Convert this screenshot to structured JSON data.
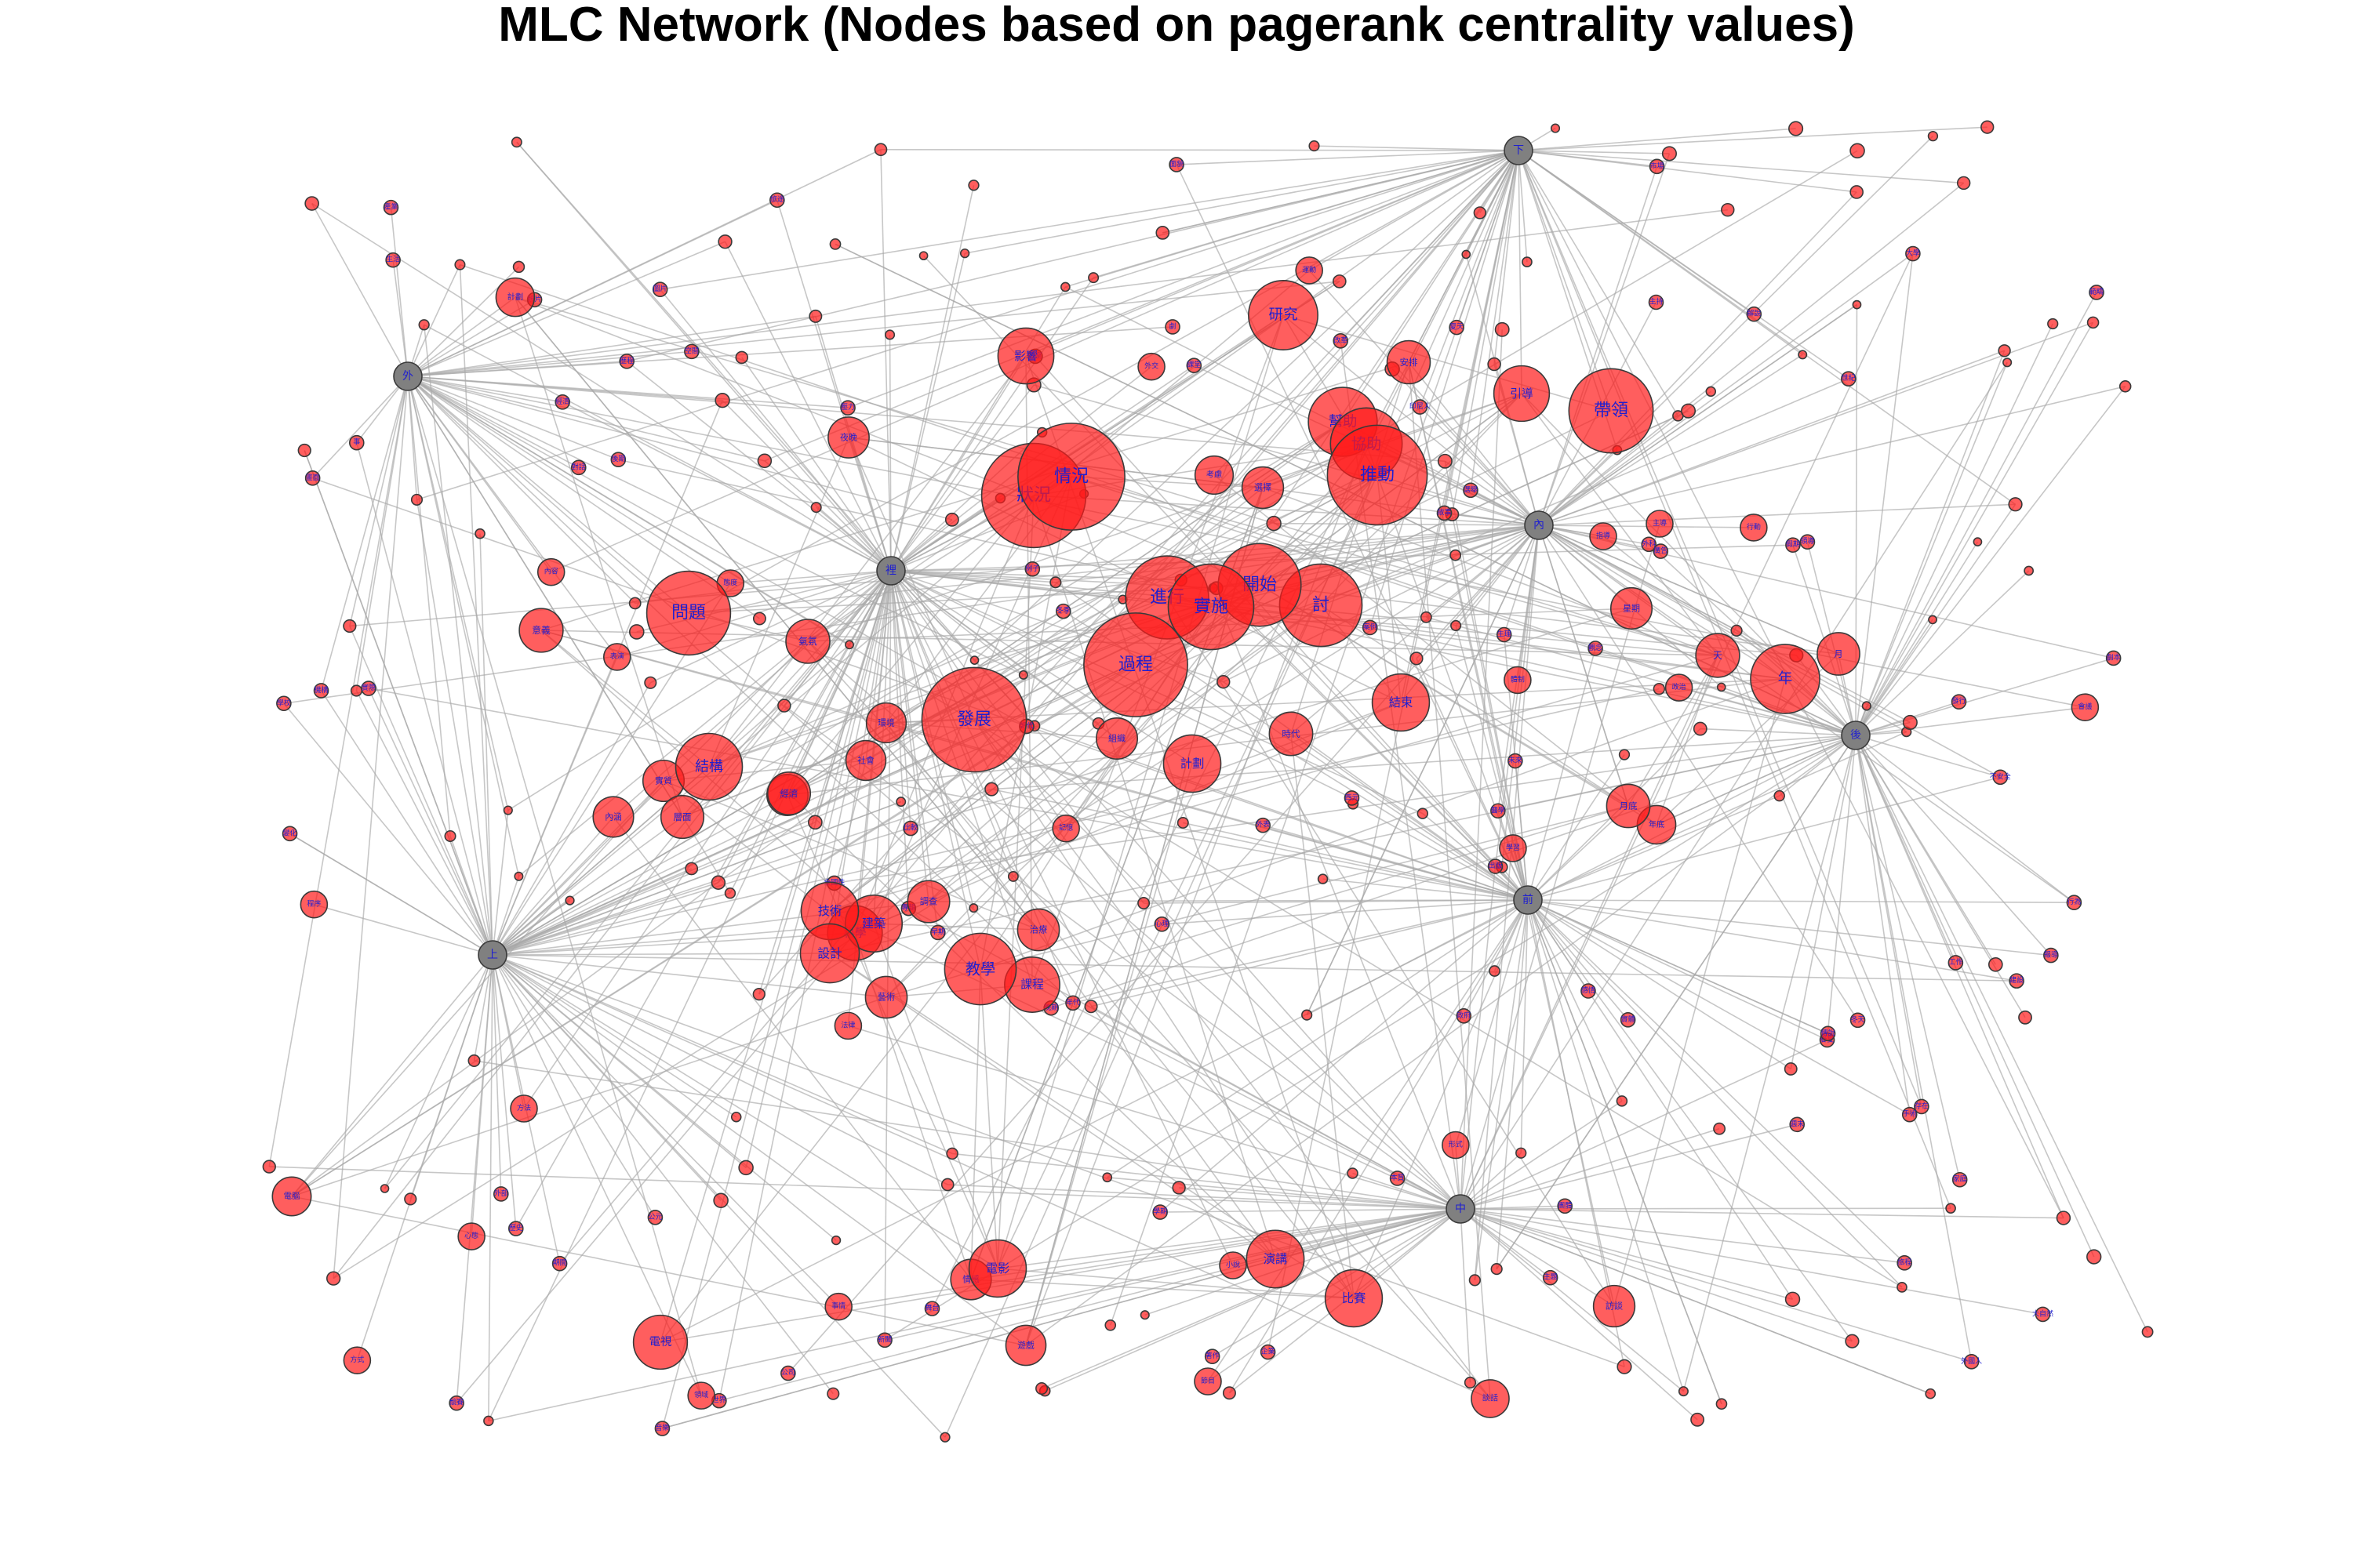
{
  "title": "MLC Network (Nodes based on pagerank centrality values)",
  "colors": {
    "node_fill": "#ff1a1a",
    "hub_fill": "#808080",
    "edge": "#a9a9a9",
    "label": "#1f1fd0"
  },
  "hubs": [
    {
      "id": "上",
      "label": "上"
    },
    {
      "id": "下",
      "label": "下"
    },
    {
      "id": "中",
      "label": "中"
    },
    {
      "id": "外",
      "label": "外"
    },
    {
      "id": "後",
      "label": "後"
    },
    {
      "id": "前",
      "label": "前"
    },
    {
      "id": "內",
      "label": "內"
    },
    {
      "id": "裡",
      "label": "裡"
    }
  ],
  "nodes": [
    {
      "label": "情況",
      "size": 9
    },
    {
      "label": "推動",
      "size": 8
    },
    {
      "label": "狀況",
      "size": 7
    },
    {
      "label": "過程",
      "size": 7
    },
    {
      "label": "發展",
      "size": 7
    },
    {
      "label": "帶領",
      "size": 6
    },
    {
      "label": "進行",
      "size": 6
    },
    {
      "label": "問題",
      "size": 6
    },
    {
      "label": "實施",
      "size": 6
    },
    {
      "label": "開始",
      "size": 6
    },
    {
      "label": "討",
      "size": 6
    },
    {
      "label": "幫助",
      "size": 5
    },
    {
      "label": "協助",
      "size": 5
    },
    {
      "label": "結構",
      "size": 5
    },
    {
      "label": "年",
      "size": 5
    },
    {
      "label": "計劃",
      "size": 4
    },
    {
      "label": "研究",
      "size": 5
    },
    {
      "label": "教學",
      "size": 5
    },
    {
      "label": "課程",
      "size": 4
    },
    {
      "label": "影響",
      "size": 4
    },
    {
      "label": "引導",
      "size": 4
    },
    {
      "label": "電視",
      "size": 4
    },
    {
      "label": "比賽",
      "size": 4
    },
    {
      "label": "演講",
      "size": 4
    },
    {
      "label": "電影",
      "size": 4
    },
    {
      "label": "結束",
      "size": 4
    },
    {
      "label": "建築",
      "size": 4
    },
    {
      "label": "設計",
      "size": 4
    },
    {
      "label": "技術",
      "size": 4
    },
    {
      "label": "科學",
      "size": 4
    },
    {
      "label": "組織",
      "size": 3
    },
    {
      "label": "社會",
      "size": 3
    },
    {
      "label": "環境",
      "size": 3
    },
    {
      "label": "計劃",
      "size": 3
    },
    {
      "label": "文化",
      "size": 3
    },
    {
      "label": "意義",
      "size": 3
    },
    {
      "label": "氣氛",
      "size": 3
    },
    {
      "label": "夜晚",
      "size": 3
    },
    {
      "label": "考慮",
      "size": 3
    },
    {
      "label": "選擇",
      "size": 3
    },
    {
      "label": "經濟",
      "size": 3
    },
    {
      "label": "內涵",
      "size": 3
    },
    {
      "label": "層面",
      "size": 3
    },
    {
      "label": "實質",
      "size": 3
    },
    {
      "label": "藝術",
      "size": 3
    },
    {
      "label": "治療",
      "size": 3
    },
    {
      "label": "方法",
      "size": 2
    },
    {
      "label": "調查",
      "size": 3
    },
    {
      "label": "電腦",
      "size": 3
    },
    {
      "label": "情感",
      "size": 3
    },
    {
      "label": "時代",
      "size": 3
    },
    {
      "label": "安排",
      "size": 3
    },
    {
      "label": "星期",
      "size": 3
    },
    {
      "label": "天",
      "size": 3
    },
    {
      "label": "月",
      "size": 3
    },
    {
      "label": "月底",
      "size": 3
    },
    {
      "label": "年底",
      "size": 3
    },
    {
      "label": "訪談",
      "size": 3
    },
    {
      "label": "談話",
      "size": 3
    },
    {
      "label": "遊戲",
      "size": 3
    },
    {
      "label": "節目",
      "size": 2
    },
    {
      "label": "小說",
      "size": 2
    },
    {
      "label": "表演",
      "size": 2
    },
    {
      "label": "主導",
      "size": 2
    },
    {
      "label": "指導",
      "size": 2
    },
    {
      "label": "記憶",
      "size": 2
    },
    {
      "label": "政治",
      "size": 2
    },
    {
      "label": "法律",
      "size": 2
    },
    {
      "label": "程序",
      "size": 2
    },
    {
      "label": "學習",
      "size": 2
    },
    {
      "label": "運動",
      "size": 2
    },
    {
      "label": "事情",
      "size": 2
    },
    {
      "label": "外交",
      "size": 2
    },
    {
      "label": "心態",
      "size": 2
    },
    {
      "label": "態度",
      "size": 2
    },
    {
      "label": "領域",
      "size": 2
    },
    {
      "label": "形式",
      "size": 2
    },
    {
      "label": "方式",
      "size": 2
    },
    {
      "label": "內容",
      "size": 2
    },
    {
      "label": "會議",
      "size": 2
    },
    {
      "label": "行動",
      "size": 2
    },
    {
      "label": "體制",
      "size": 2
    },
    {
      "label": "世界",
      "size": 1
    },
    {
      "label": "生活",
      "size": 1
    },
    {
      "label": "心理",
      "size": 1
    },
    {
      "label": "壓力",
      "size": 1
    },
    {
      "label": "觀念",
      "size": 1
    },
    {
      "label": "生理",
      "size": 1
    },
    {
      "label": "實際",
      "size": 1
    },
    {
      "label": "實體",
      "size": 1
    },
    {
      "label": "歷史",
      "size": 1
    },
    {
      "label": "感情",
      "size": 1
    },
    {
      "label": "工作",
      "size": 1
    },
    {
      "label": "外表",
      "size": 1
    },
    {
      "label": "外部",
      "size": 1
    },
    {
      "label": "事",
      "size": 1
    },
    {
      "label": "公元",
      "size": 1
    },
    {
      "label": "西元",
      "size": 1
    },
    {
      "label": "出版",
      "size": 1
    },
    {
      "label": "選舉",
      "size": 1
    },
    {
      "label": "經濟",
      "size": 1
    },
    {
      "label": "著作",
      "size": 1
    },
    {
      "label": "旅程",
      "size": 1
    },
    {
      "label": "發行",
      "size": 1
    },
    {
      "label": "存在",
      "size": 1
    },
    {
      "label": "旅途",
      "size": 1
    },
    {
      "label": "劇",
      "size": 1
    },
    {
      "label": "劇本",
      "size": 1
    },
    {
      "label": "手術",
      "size": 1
    },
    {
      "label": "解說",
      "size": 1
    },
    {
      "label": "主題",
      "size": 1
    },
    {
      "label": "空間",
      "size": 1
    },
    {
      "label": "建設",
      "size": 1
    },
    {
      "label": "醫學",
      "size": 1
    },
    {
      "label": "外科",
      "size": 1
    },
    {
      "label": "改革",
      "size": 1
    },
    {
      "label": "主持",
      "size": 1
    },
    {
      "label": "領導",
      "size": 1
    },
    {
      "label": "變化",
      "size": 1
    },
    {
      "label": "歷程",
      "size": 1
    },
    {
      "label": "行為",
      "size": 1
    },
    {
      "label": "面貌",
      "size": 1
    },
    {
      "label": "本質",
      "size": 1
    },
    {
      "label": "範疇",
      "size": 1
    },
    {
      "label": "大自然",
      "size": 1
    },
    {
      "label": "外國人",
      "size": 1
    },
    {
      "label": "印尼人",
      "size": 1
    },
    {
      "label": "全國性",
      "size": 1
    },
    {
      "label": "不安全",
      "size": 1
    },
    {
      "label": "冬季",
      "size": 1
    },
    {
      "label": "冬天",
      "size": 1
    },
    {
      "label": "夏天",
      "size": 1
    },
    {
      "label": "春夏",
      "size": 1
    },
    {
      "label": "早期",
      "size": 1
    },
    {
      "label": "後期",
      "size": 1
    },
    {
      "label": "晚期",
      "size": 1
    },
    {
      "label": "未來",
      "size": 1
    },
    {
      "label": "期間",
      "size": 1
    },
    {
      "label": "年代",
      "size": 1
    },
    {
      "label": "世紀",
      "size": 1
    },
    {
      "label": "朝代",
      "size": 1
    },
    {
      "label": "學期",
      "size": 1
    },
    {
      "label": "假期",
      "size": 1
    },
    {
      "label": "週末",
      "size": 1
    },
    {
      "label": "課堂",
      "size": 1
    },
    {
      "label": "教室",
      "size": 1
    },
    {
      "label": "學校",
      "size": 1
    },
    {
      "label": "大學",
      "size": 1
    },
    {
      "label": "家庭",
      "size": 1
    },
    {
      "label": "團體",
      "size": 1
    },
    {
      "label": "政府",
      "size": 1
    },
    {
      "label": "公司",
      "size": 1
    },
    {
      "label": "市場",
      "size": 1
    },
    {
      "label": "產業",
      "size": 1
    },
    {
      "label": "企業",
      "size": 1
    },
    {
      "label": "機構",
      "size": 1
    },
    {
      "label": "例子",
      "size": 1
    },
    {
      "label": "案例",
      "size": 1
    },
    {
      "label": "比較",
      "size": 1
    },
    {
      "label": "競賽",
      "size": 1
    },
    {
      "label": "專輯",
      "size": 1
    },
    {
      "label": "對話",
      "size": 1
    },
    {
      "label": "傳說",
      "size": 1
    },
    {
      "label": "故事",
      "size": 1
    },
    {
      "label": "新聞",
      "size": 1
    },
    {
      "label": "報導",
      "size": 1
    },
    {
      "label": "廣告",
      "size": 1
    },
    {
      "label": "音樂",
      "size": 1
    },
    {
      "label": "舞台",
      "size": 1
    },
    {
      "label": "畫面",
      "size": 1
    },
    {
      "label": "照片",
      "size": 1
    },
    {
      "label": "圖片",
      "size": 1
    }
  ]
}
